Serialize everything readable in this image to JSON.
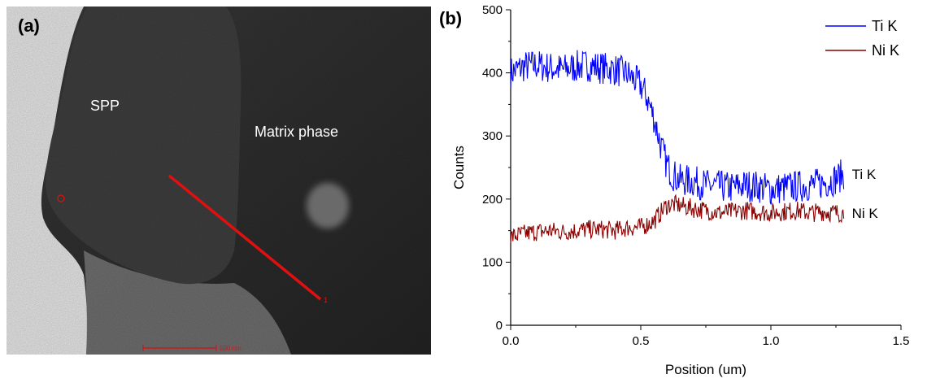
{
  "panel_a": {
    "label": "(a)",
    "spp_label": "SPP",
    "matrix_label": "Matrix phase",
    "marker_label": "1",
    "scale_bar_label": "500 nm",
    "colors": {
      "line": "#e01010",
      "scale_bar": "#cc1a1a"
    }
  },
  "panel_b": {
    "label": "(b)"
  },
  "chart_data": {
    "type": "line",
    "xlabel": "Position (um)",
    "ylabel": "Counts",
    "xlim": [
      0.0,
      1.5
    ],
    "ylim": [
      0,
      500
    ],
    "x_ticks": [
      "0.0",
      "0.5",
      "1.0",
      "1.5"
    ],
    "y_ticks": [
      "0",
      "100",
      "200",
      "300",
      "400",
      "500"
    ],
    "grid": false,
    "legend": "top-right",
    "series": [
      {
        "name": "Ti K",
        "end_label": "Ti K",
        "color": "#0000ff",
        "x": [
          0.0,
          0.05,
          0.1,
          0.15,
          0.2,
          0.25,
          0.3,
          0.35,
          0.4,
          0.45,
          0.5,
          0.52,
          0.55,
          0.58,
          0.6,
          0.62,
          0.65,
          0.7,
          0.75,
          0.8,
          0.85,
          0.9,
          0.95,
          1.0,
          1.05,
          1.1,
          1.15,
          1.2,
          1.25,
          1.28
        ],
        "y": [
          400,
          410,
          412,
          408,
          405,
          410,
          412,
          408,
          405,
          398,
          380,
          365,
          330,
          280,
          255,
          240,
          230,
          228,
          222,
          220,
          218,
          222,
          220,
          215,
          218,
          220,
          222,
          225,
          232,
          240
        ]
      },
      {
        "name": "Ni K",
        "end_label": "Ni K",
        "color": "#8b0000",
        "x": [
          0.0,
          0.05,
          0.1,
          0.15,
          0.2,
          0.25,
          0.3,
          0.35,
          0.4,
          0.45,
          0.5,
          0.55,
          0.58,
          0.6,
          0.62,
          0.65,
          0.7,
          0.75,
          0.8,
          0.85,
          0.9,
          0.95,
          1.0,
          1.05,
          1.1,
          1.15,
          1.2,
          1.25,
          1.28
        ],
        "y": [
          140,
          145,
          148,
          150,
          148,
          150,
          152,
          152,
          150,
          155,
          155,
          165,
          180,
          190,
          192,
          190,
          185,
          182,
          178,
          180,
          182,
          180,
          178,
          180,
          182,
          178,
          180,
          178,
          178
        ]
      }
    ]
  }
}
